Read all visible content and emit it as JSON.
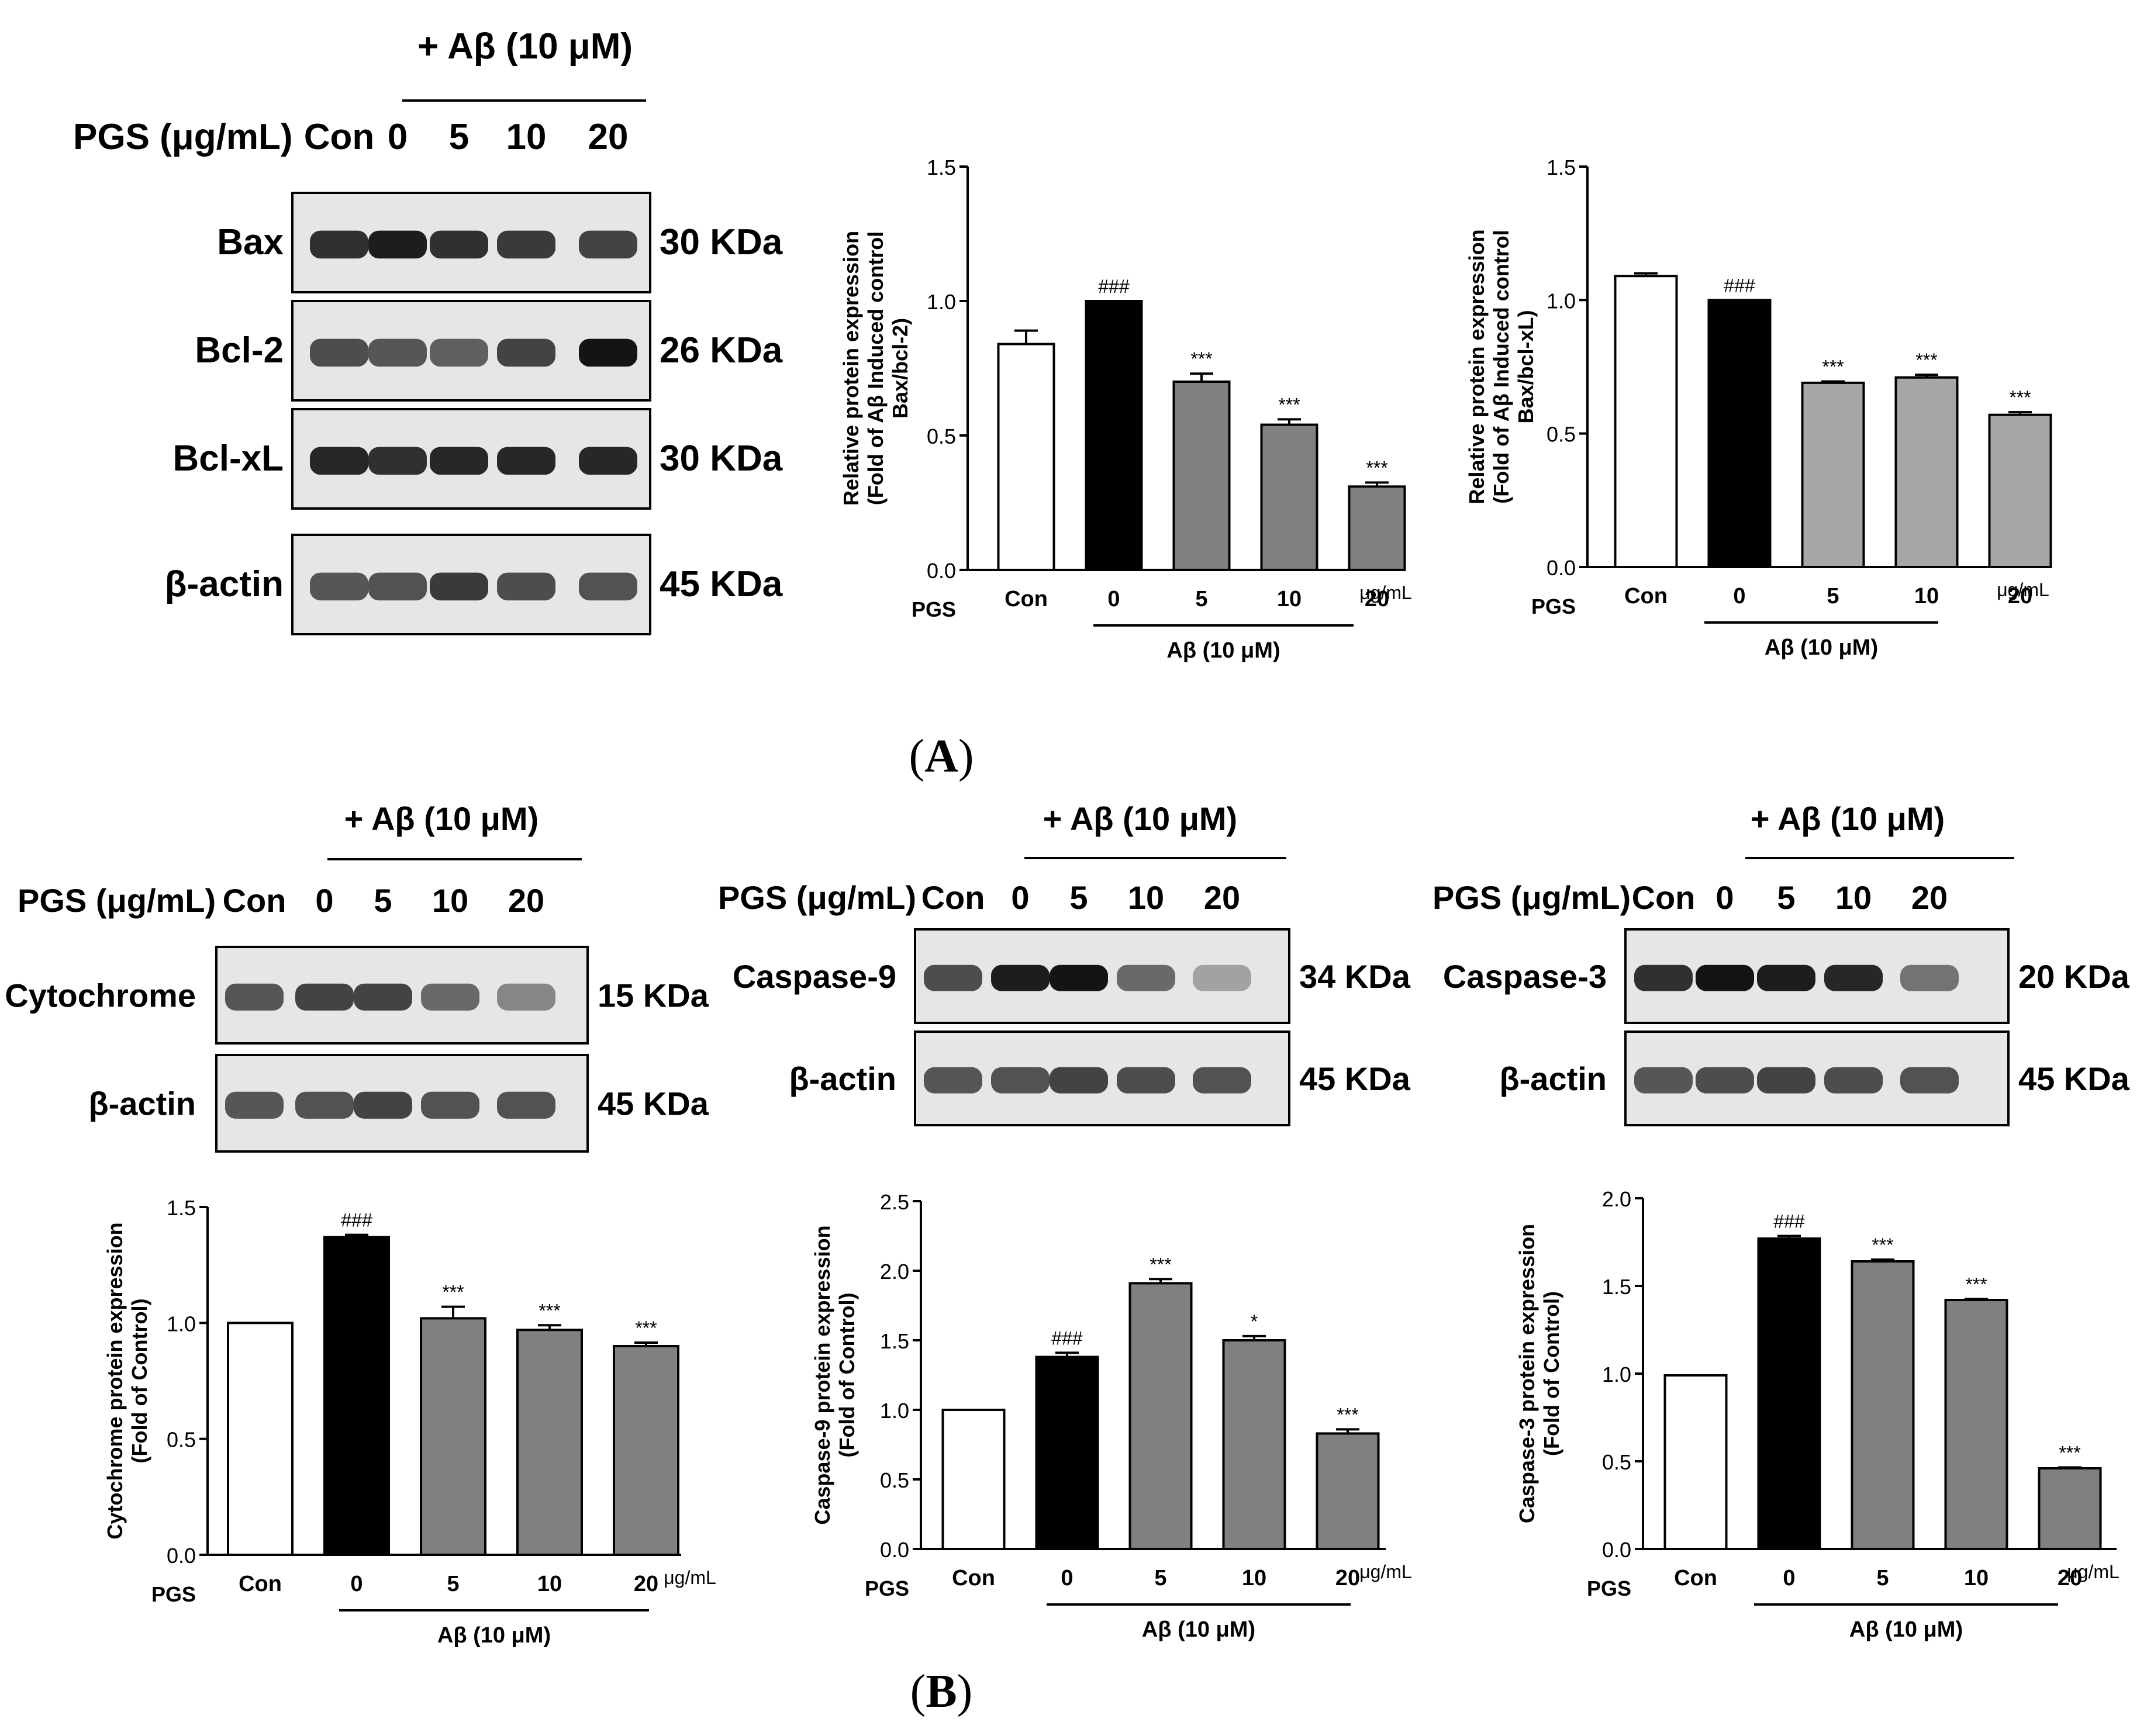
{
  "panels": {
    "a": {
      "label_open": "(",
      "letter": "A",
      "label_close": ")"
    },
    "b": {
      "label_open": "(",
      "letter": "B",
      "label_close": ")"
    }
  },
  "blots": [
    {
      "id": "blot-a",
      "treatment_label": "+ Aβ (10 μM)",
      "pgs_label": "PGS (μg/mL)",
      "lanes": [
        "Con",
        "0",
        "5",
        "10",
        "20"
      ],
      "proteins": [
        {
          "name": "Bax",
          "size": "30 KDa",
          "intensity": [
            0.8,
            0.9,
            0.8,
            0.75,
            0.7
          ]
        },
        {
          "name": "Bcl-2",
          "size": "26 KDa",
          "intensity": [
            0.65,
            0.6,
            0.55,
            0.7,
            0.95
          ]
        },
        {
          "name": "Bcl-xL",
          "size": "30 KDa",
          "intensity": [
            0.85,
            0.8,
            0.85,
            0.85,
            0.85
          ]
        },
        {
          "name": "β-actin",
          "size": "45 KDa",
          "intensity": [
            0.6,
            0.62,
            0.75,
            0.65,
            0.62
          ]
        }
      ]
    },
    {
      "id": "blot-cyto",
      "treatment_label": "+ Aβ (10 μM)",
      "pgs_label": "PGS (μg/mL)",
      "lanes": [
        "Con",
        "0",
        "5",
        "10",
        "20"
      ],
      "proteins": [
        {
          "name": "Cytochrome",
          "size": "15 KDa",
          "intensity": [
            0.6,
            0.7,
            0.7,
            0.5,
            0.35
          ]
        },
        {
          "name": "β-actin",
          "size": "45 KDa",
          "intensity": [
            0.6,
            0.62,
            0.7,
            0.62,
            0.62
          ]
        }
      ]
    },
    {
      "id": "blot-casp9",
      "treatment_label": "+ Aβ (10 μM)",
      "pgs_label": "PGS (μg/mL)",
      "lanes": [
        "Con",
        "0",
        "5",
        "10",
        "20"
      ],
      "proteins": [
        {
          "name": "Caspase-9",
          "size": "34 KDa",
          "intensity": [
            0.65,
            0.9,
            0.95,
            0.5,
            0.2
          ]
        },
        {
          "name": "β-actin",
          "size": "45 KDa",
          "intensity": [
            0.6,
            0.62,
            0.7,
            0.65,
            0.62
          ]
        }
      ]
    },
    {
      "id": "blot-casp3",
      "treatment_label": "+ Aβ (10 μM)",
      "pgs_label": "PGS (μg/mL)",
      "lanes": [
        "Con",
        "0",
        "5",
        "10",
        "20"
      ],
      "proteins": [
        {
          "name": "Caspase-3",
          "size": "20 KDa",
          "intensity": [
            0.8,
            0.95,
            0.9,
            0.85,
            0.45
          ]
        },
        {
          "name": "β-actin",
          "size": "45 KDa",
          "intensity": [
            0.6,
            0.65,
            0.7,
            0.65,
            0.62
          ]
        }
      ]
    }
  ],
  "chart_data": [
    {
      "id": "chart-bax-bcl2",
      "type": "bar",
      "categories": [
        "Con",
        "0",
        "5",
        "10",
        "20"
      ],
      "values": [
        0.84,
        1.0,
        0.7,
        0.54,
        0.31
      ],
      "errors": [
        0.05,
        0.0,
        0.03,
        0.02,
        0.015
      ],
      "significance": [
        "",
        "###",
        "***",
        "***",
        "***"
      ],
      "bar_colors": [
        "#ffffff",
        "#000000",
        "#808080",
        "#808080",
        "#808080"
      ],
      "ylabel_lines": [
        "Relative protein expression",
        "(Fold of Aβ Induced control",
        "Bax/bcl-2)"
      ],
      "ylim": [
        0,
        1.5
      ],
      "yticks": [
        "0.0",
        "0.5",
        "1.0",
        "1.5"
      ],
      "x_prefix": "PGS",
      "x_unit": "μg/mL",
      "group_label": "Aβ (10 μM)"
    },
    {
      "id": "chart-bax-bclxl",
      "type": "bar",
      "categories": [
        "Con",
        "0",
        "5",
        "10",
        "20"
      ],
      "values": [
        1.09,
        1.0,
        0.69,
        0.71,
        0.57
      ],
      "errors": [
        0.01,
        0.0,
        0.005,
        0.01,
        0.01
      ],
      "significance": [
        "",
        "###",
        "***",
        "***",
        "***"
      ],
      "bar_colors": [
        "#ffffff",
        "#000000",
        "#a6a6a6",
        "#a6a6a6",
        "#a6a6a6"
      ],
      "ylabel_lines": [
        "Relative protein expression",
        "(Fold of Aβ Induced control",
        "Bax/bcl-xL)"
      ],
      "ylim": [
        0,
        1.5
      ],
      "yticks": [
        "0.0",
        "0.5",
        "1.0",
        "1.5"
      ],
      "x_prefix": "PGS",
      "x_unit": "μg/mL",
      "group_label": "Aβ (10 μM)"
    },
    {
      "id": "chart-cytochrome",
      "type": "bar",
      "categories": [
        "Con",
        "0",
        "5",
        "10",
        "20"
      ],
      "values": [
        1.0,
        1.37,
        1.02,
        0.97,
        0.9
      ],
      "errors": [
        0.0,
        0.01,
        0.05,
        0.02,
        0.015
      ],
      "significance": [
        "",
        "###",
        "***",
        "***",
        "***"
      ],
      "bar_colors": [
        "#ffffff",
        "#000000",
        "#808080",
        "#808080",
        "#808080"
      ],
      "ylabel_lines": [
        "Cytochrome protein expression",
        "(Fold of Control)"
      ],
      "ylim": [
        0,
        1.5
      ],
      "yticks": [
        "0.0",
        "0.5",
        "1.0",
        "1.5"
      ],
      "x_prefix": "PGS",
      "x_unit": "μg/mL",
      "group_label": "Aβ (10 μM)"
    },
    {
      "id": "chart-caspase9",
      "type": "bar",
      "categories": [
        "Con",
        "0",
        "5",
        "10",
        "20"
      ],
      "values": [
        1.0,
        1.38,
        1.91,
        1.5,
        0.83
      ],
      "errors": [
        0.0,
        0.03,
        0.03,
        0.03,
        0.03
      ],
      "significance": [
        "",
        "###",
        "***",
        "*",
        "***"
      ],
      "bar_colors": [
        "#ffffff",
        "#000000",
        "#808080",
        "#808080",
        "#808080"
      ],
      "ylabel_lines": [
        "Caspase-9 protein expression",
        "(Fold of Control)"
      ],
      "ylim": [
        0,
        2.5
      ],
      "yticks": [
        "0.0",
        "0.5",
        "1.0",
        "1.5",
        "2.0",
        "2.5"
      ],
      "x_prefix": "PGS",
      "x_unit": "μg/mL",
      "group_label": "Aβ (10 μM)"
    },
    {
      "id": "chart-caspase3",
      "type": "bar",
      "categories": [
        "Con",
        "0",
        "5",
        "10",
        "20"
      ],
      "values": [
        0.99,
        1.77,
        1.64,
        1.42,
        0.46
      ],
      "errors": [
        0.0,
        0.015,
        0.01,
        0.005,
        0.005
      ],
      "significance": [
        "",
        "###",
        "***",
        "***",
        "***"
      ],
      "bar_colors": [
        "#ffffff",
        "#000000",
        "#808080",
        "#808080",
        "#808080"
      ],
      "ylabel_lines": [
        "Caspase-3 protein expression",
        "(Fold of Control)"
      ],
      "ylim": [
        0,
        2.0
      ],
      "yticks": [
        "0.0",
        "0.5",
        "1.0",
        "1.5",
        "2.0"
      ],
      "x_prefix": "PGS",
      "x_unit": "μg/mL",
      "group_label": "Aβ (10 μM)"
    }
  ]
}
